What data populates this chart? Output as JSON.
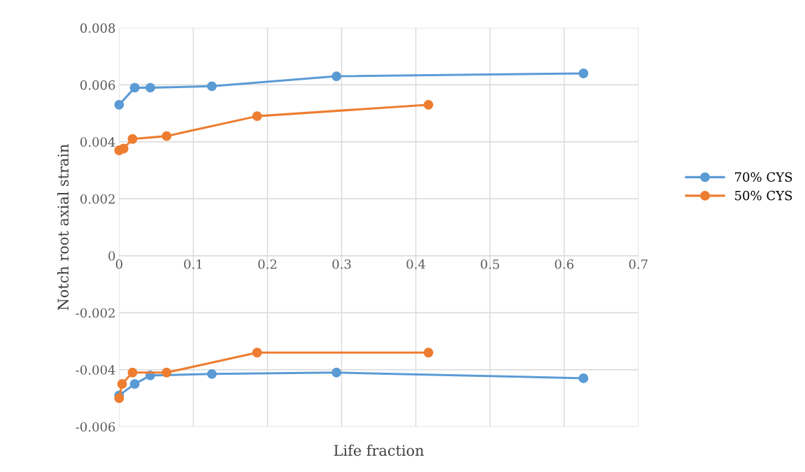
{
  "chart_data": {
    "type": "line",
    "xlabel": "Life fraction",
    "ylabel": "Notch root axial strain",
    "xlim": [
      0,
      0.7
    ],
    "ylim": [
      -0.006,
      0.008
    ],
    "xticks": [
      0,
      0.1,
      0.2,
      0.3,
      0.4,
      0.5,
      0.6,
      0.7
    ],
    "yticks": [
      -0.006,
      -0.004,
      -0.002,
      0,
      0.002,
      0.004,
      0.006,
      0.008
    ],
    "grid": true,
    "legend": "right",
    "marker": "circle",
    "line_style": "solid",
    "series": [
      {
        "name": "70% CYS",
        "color": "#5b9bd5",
        "x": [
          0,
          0.021,
          0.042,
          0.125,
          0.293,
          0.626
        ],
        "values": [
          0.0053,
          0.0059,
          0.0059,
          0.00595,
          0.0063,
          0.0064
        ]
      },
      {
        "name": "50% CYS",
        "color": "#ed7d31",
        "x": [
          0,
          0.006,
          0.018,
          0.064,
          0.186,
          0.417
        ],
        "values": [
          0.0037,
          0.00376,
          0.0041,
          0.0042,
          0.0049,
          0.0053
        ]
      },
      {
        "color": "#5b9bd5",
        "x": [
          0,
          0.021,
          0.042,
          0.125,
          0.293,
          0.626
        ],
        "values": [
          -0.0049,
          -0.0045,
          -0.0042,
          -0.00415,
          -0.0041,
          -0.0043
        ]
      },
      {
        "color": "#ed7d31",
        "x": [
          0,
          0.004,
          0.018,
          0.064,
          0.186,
          0.417
        ],
        "values": [
          -0.005,
          -0.0045,
          -0.0041,
          -0.0041,
          -0.0034,
          -0.0034
        ]
      }
    ]
  }
}
